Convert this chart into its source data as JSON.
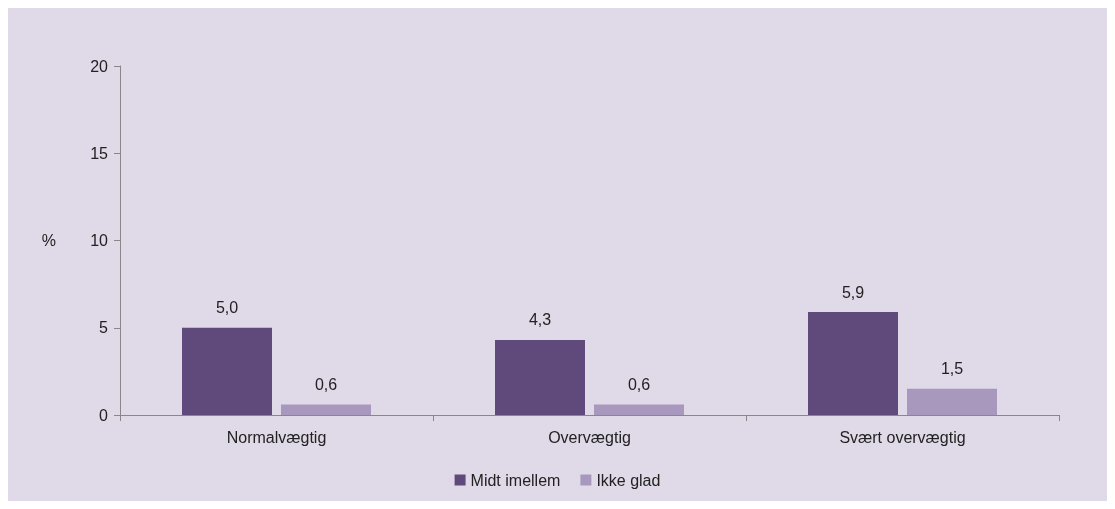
{
  "chart_data": {
    "type": "bar",
    "ylabel": "%",
    "categories": [
      "Normalvægtig",
      "Overvægtig",
      "Svært overvægtig"
    ],
    "series": [
      {
        "name": "Midt imellem",
        "color": "#5f4a7b",
        "values": [
          5.0,
          4.3,
          5.9
        ],
        "value_labels": [
          "5,0",
          "4,3",
          "5,9"
        ]
      },
      {
        "name": "Ikke glad",
        "color": "#a898bd",
        "values": [
          0.6,
          0.6,
          1.5
        ],
        "value_labels": [
          "0,6",
          "0,6",
          "1,5"
        ]
      }
    ],
    "ylim": [
      0,
      20
    ],
    "yticks": [
      0,
      5,
      10,
      15,
      20
    ],
    "legend": "bottom"
  }
}
